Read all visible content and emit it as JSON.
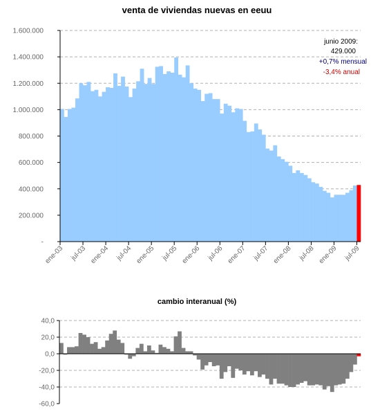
{
  "chart_data": [
    {
      "type": "bar",
      "title": "venta de viviendas nuevas en eeuu",
      "ylim": [
        0,
        1600000
      ],
      "y_ticks": [
        "-",
        "200.000",
        "400.000",
        "600.000",
        "800.000",
        "1.000.000",
        "1.200.000",
        "1.400.000",
        "1.600.000"
      ],
      "x_ticks": [
        "ene-03",
        "jul-03",
        "ene-04",
        "jul-04",
        "ene-05",
        "jul-05",
        "ene-06",
        "jul-06",
        "ene-07",
        "jul-07",
        "ene-08",
        "jul-08",
        "ene-09",
        "jul-09"
      ],
      "grid": true,
      "colors": {
        "bars": "#99ccff",
        "highlight": "#ff0000"
      },
      "annotation": {
        "line1": "junio 2009:",
        "line2": "429.000",
        "line3": "+0,7% mensual",
        "line4": "-3,4% anual",
        "color_line3": "#000080",
        "color_line4": "#cc0000"
      },
      "values": [
        1005000,
        945000,
        1005000,
        1015000,
        1085000,
        1200000,
        1185000,
        1210000,
        1140000,
        1150000,
        1100000,
        1135000,
        1170000,
        1165000,
        1275000,
        1180000,
        1250000,
        1175000,
        1095000,
        1160000,
        1215000,
        1310000,
        1195000,
        1240000,
        1195000,
        1325000,
        1330000,
        1270000,
        1290000,
        1280000,
        1395000,
        1265000,
        1245000,
        1335000,
        1200000,
        1160000,
        1150000,
        1065000,
        1120000,
        1125000,
        1080000,
        1080000,
        970000,
        1045000,
        1030000,
        980000,
        1010000,
        1005000,
        915000,
        830000,
        835000,
        895000,
        850000,
        810000,
        705000,
        690000,
        730000,
        645000,
        625000,
        605000,
        575000,
        520000,
        540000,
        520000,
        505000,
        480000,
        450000,
        440000,
        415000,
        385000,
        370000,
        335000,
        355000,
        355000,
        355000,
        370000,
        390000,
        425000,
        429000
      ],
      "highlight_index": 78
    },
    {
      "type": "bar",
      "title": "cambio interanual (%)",
      "ylim": [
        -60,
        40
      ],
      "y_ticks": [
        "-60,0",
        "-40,0",
        "-20,0",
        "0,0",
        "20,0",
        "40,0"
      ],
      "grid": true,
      "colors": {
        "bars": "#808080",
        "highlight": "#ff0000"
      },
      "values": [
        13,
        -1,
        8,
        8,
        9,
        25,
        23,
        20,
        12,
        14,
        6,
        8,
        16,
        24,
        28,
        17,
        13,
        -1,
        -6,
        -3,
        7,
        12,
        3,
        10,
        4,
        1,
        11,
        8,
        6,
        3,
        21,
        27,
        7,
        3,
        3,
        -2,
        -7,
        -19,
        -14,
        -10,
        -15,
        -14,
        -30,
        -22,
        -15,
        -29,
        -18,
        -20,
        -25,
        -21,
        -26,
        -21,
        -28,
        -25,
        -30,
        -37,
        -30,
        -36,
        -36,
        -38,
        -40,
        -40,
        -37,
        -35,
        -33,
        -38,
        -38,
        -37,
        -38,
        -43,
        -39,
        -46,
        -38,
        -37,
        -36,
        -30,
        -22,
        -13,
        -3
      ],
      "highlight_index": 78
    }
  ]
}
